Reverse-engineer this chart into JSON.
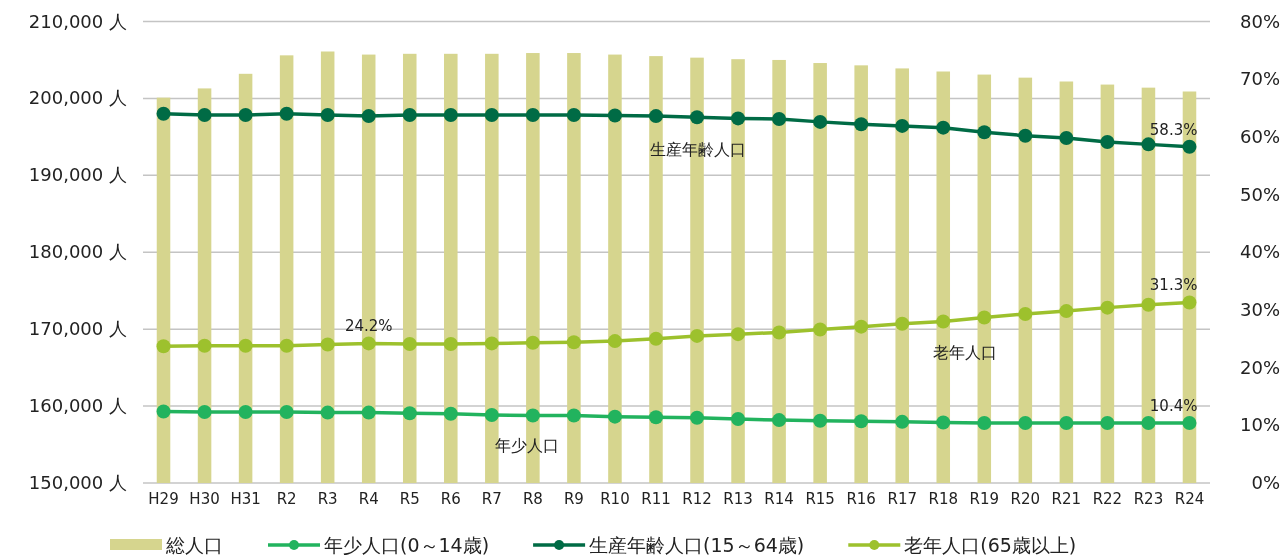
{
  "chart_data": {
    "type": "bar",
    "categories": [
      "H29",
      "H30",
      "H31",
      "R2",
      "R3",
      "R4",
      "R5",
      "R6",
      "R7",
      "R8",
      "R9",
      "R10",
      "R11",
      "R12",
      "R13",
      "R14",
      "R15",
      "R16",
      "R17",
      "R18",
      "R19",
      "R20",
      "R21",
      "R22",
      "R23",
      "R24"
    ],
    "series": [
      {
        "name": "総人口",
        "color": "#d6d58e",
        "values": [
          200100,
          201300,
          203200,
          205600,
          206100,
          205700,
          205800,
          205800,
          205800,
          205900,
          205900,
          205700,
          205500,
          205300,
          205100,
          205000,
          204600,
          204300,
          203900,
          203500,
          203100,
          202700,
          202200,
          201800,
          201400,
          200900
        ]
      },
      {
        "name": "年少人口(0～14歳)",
        "type": "line",
        "axis": "y2",
        "color": "#22b35e",
        "values": [
          12.4,
          12.3,
          12.3,
          12.3,
          12.2,
          12.2,
          12.1,
          12.0,
          11.8,
          11.7,
          11.7,
          11.5,
          11.4,
          11.3,
          11.1,
          10.9,
          10.8,
          10.7,
          10.6,
          10.5,
          10.4,
          10.4,
          10.4,
          10.4,
          10.4,
          10.4
        ],
        "value_labels": [
          null,
          null,
          null,
          null,
          null,
          null,
          null,
          null,
          null,
          null,
          null,
          null,
          null,
          null,
          null,
          null,
          null,
          null,
          null,
          null,
          null,
          null,
          null,
          null,
          null,
          "10.4%"
        ]
      },
      {
        "name": "生産年齢人口(15～64歳)",
        "type": "line",
        "axis": "y2",
        "color": "#006b45",
        "values": [
          64.0,
          63.8,
          63.8,
          64.0,
          63.8,
          63.6,
          63.8,
          63.8,
          63.8,
          63.8,
          63.8,
          63.7,
          63.6,
          63.4,
          63.2,
          63.1,
          62.6,
          62.2,
          61.9,
          61.6,
          60.8,
          60.2,
          59.8,
          59.1,
          58.7,
          58.3
        ],
        "value_labels": [
          null,
          null,
          null,
          null,
          null,
          null,
          null,
          null,
          null,
          null,
          null,
          null,
          null,
          null,
          null,
          null,
          null,
          null,
          null,
          null,
          null,
          null,
          null,
          null,
          null,
          "58.3%"
        ]
      },
      {
        "name": "老年人口(65歳以上)",
        "type": "line",
        "axis": "y2",
        "color": "#9dc12d",
        "values": [
          23.7,
          23.8,
          23.8,
          23.8,
          24.0,
          24.2,
          24.1,
          24.1,
          24.2,
          24.3,
          24.4,
          24.6,
          25.0,
          25.5,
          25.8,
          26.1,
          26.6,
          27.1,
          27.6,
          28.0,
          28.7,
          29.3,
          29.8,
          30.4,
          30.9,
          31.3
        ],
        "value_labels": [
          null,
          null,
          null,
          null,
          null,
          "24.2%",
          null,
          null,
          null,
          null,
          null,
          null,
          null,
          null,
          null,
          null,
          null,
          null,
          null,
          null,
          null,
          null,
          null,
          null,
          null,
          "31.3%"
        ]
      }
    ],
    "ylim": [
      150000,
      210000
    ],
    "yticks": [
      {
        "value": 150000,
        "label": "150,000 人"
      },
      {
        "value": 160000,
        "label": "160,000 人"
      },
      {
        "value": 170000,
        "label": "170,000 人"
      },
      {
        "value": 180000,
        "label": "180,000 人"
      },
      {
        "value": 190000,
        "label": "190,000 人"
      },
      {
        "value": 200000,
        "label": "200,000 人"
      },
      {
        "value": 210000,
        "label": "210,000 人"
      }
    ],
    "y2lim": [
      0,
      80
    ],
    "y2ticks": [
      {
        "value": 0,
        "label": "0%"
      },
      {
        "value": 10,
        "label": "10%"
      },
      {
        "value": 20,
        "label": "20%"
      },
      {
        "value": 30,
        "label": "30%"
      },
      {
        "value": 40,
        "label": "40%"
      },
      {
        "value": 50,
        "label": "50%"
      },
      {
        "value": 60,
        "label": "60%"
      },
      {
        "value": 70,
        "label": "70%"
      },
      {
        "value": 80,
        "label": "80%"
      }
    ],
    "grid": "y",
    "legend": "bottom",
    "marker": "circle",
    "annotations": [
      "生産年齢人口",
      "年少人口",
      "老年人口"
    ]
  }
}
